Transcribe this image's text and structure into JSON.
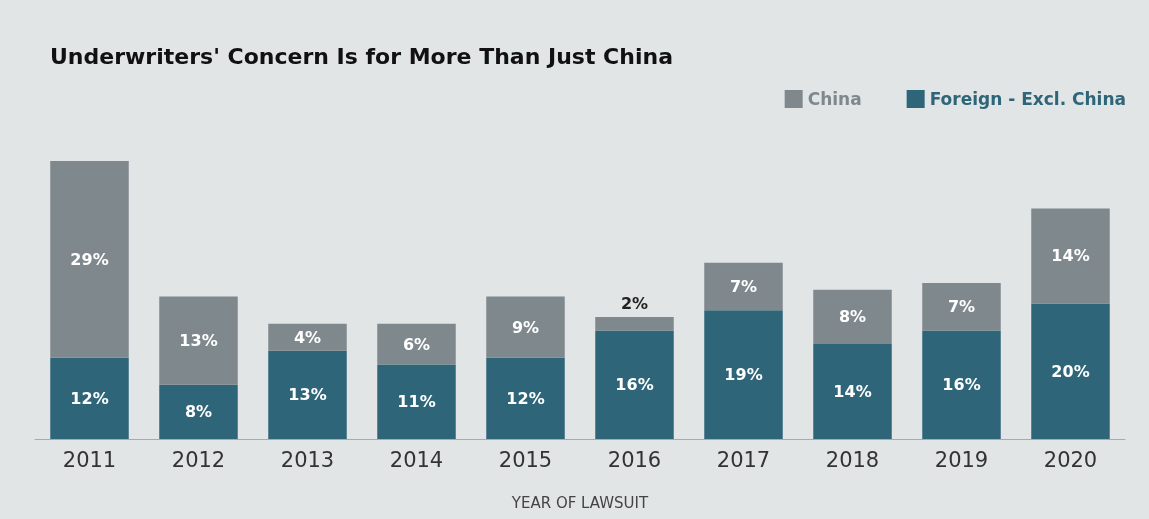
{
  "chart_data": {
    "type": "bar",
    "title": "Underwriters' Concern Is for More Than Just China",
    "xlabel": "YEAR OF LAWSUIT",
    "categories": [
      "2011",
      "2012",
      "2013",
      "2014",
      "2015",
      "2016",
      "2017",
      "2018",
      "2019",
      "2020"
    ],
    "stacked": true,
    "legend": "top right",
    "series": [
      {
        "name": "Foreign - Excl. China",
        "color": "#2e6579",
        "values": [
          12,
          8,
          13,
          11,
          12,
          16,
          19,
          14,
          16,
          20
        ],
        "value_labels": [
          "12%",
          "8%",
          "13%",
          "11%",
          "12%",
          "16%",
          "19%",
          "14%",
          "16%",
          "20%"
        ]
      },
      {
        "name": "China",
        "color": "#7f888d",
        "values": [
          29,
          13,
          4,
          6,
          9,
          2,
          7,
          8,
          7,
          14
        ],
        "value_labels": [
          "29%",
          "13%",
          "4%",
          "6%",
          "9%",
          "2%",
          "7%",
          "8%",
          "7%",
          "14%"
        ]
      }
    ]
  }
}
